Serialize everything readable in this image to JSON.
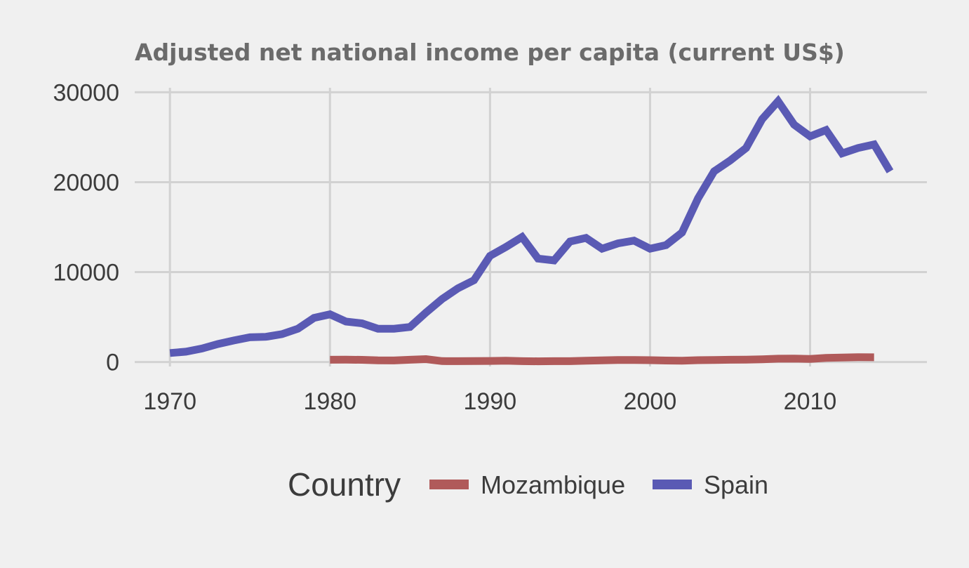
{
  "chart_data": {
    "type": "line",
    "title": "Adjusted net national income per capita (current US$)",
    "xlabel": "",
    "ylabel": "",
    "xlim": [
      1967.8,
      2017.3
    ],
    "ylim": [
      -500,
      30500
    ],
    "x_ticks": [
      1970,
      1980,
      1990,
      2000,
      2010
    ],
    "y_ticks": [
      0,
      10000,
      20000,
      30000
    ],
    "x_tick_labels": [
      "1970",
      "1980",
      "1990",
      "2000",
      "2010"
    ],
    "y_tick_labels": [
      "0",
      "10000",
      "20000",
      "30000"
    ],
    "grid": true,
    "legend": {
      "title": "Country",
      "position": "bottom"
    },
    "series": [
      {
        "name": "Mozambique",
        "color": "#b05a5a",
        "x": [
          1980,
          1981,
          1982,
          1983,
          1984,
          1985,
          1986,
          1987,
          1988,
          1989,
          1990,
          1991,
          1992,
          1993,
          1994,
          1995,
          1996,
          1997,
          1998,
          1999,
          2000,
          2001,
          2002,
          2003,
          2004,
          2005,
          2006,
          2007,
          2008,
          2009,
          2010,
          2011,
          2012,
          2013,
          2014
        ],
        "values": [
          250,
          260,
          240,
          180,
          170,
          250,
          320,
          100,
          90,
          110,
          120,
          150,
          90,
          80,
          90,
          90,
          150,
          190,
          220,
          230,
          200,
          160,
          150,
          200,
          230,
          250,
          260,
          300,
          370,
          380,
          340,
          450,
          500,
          530,
          520
        ]
      },
      {
        "name": "Spain",
        "color": "#5a5ab4",
        "x": [
          1970,
          1971,
          1972,
          1973,
          1974,
          1975,
          1976,
          1977,
          1978,
          1979,
          1980,
          1981,
          1982,
          1983,
          1984,
          1985,
          1986,
          1987,
          1988,
          1989,
          1990,
          1991,
          1992,
          1993,
          1994,
          1995,
          1996,
          1997,
          1998,
          1999,
          2000,
          2001,
          2002,
          2003,
          2004,
          2005,
          2006,
          2007,
          2008,
          2009,
          2010,
          2011,
          2012,
          2013,
          2014,
          2015
        ],
        "values": [
          1000,
          1150,
          1500,
          2000,
          2400,
          2750,
          2800,
          3100,
          3700,
          4900,
          5300,
          4500,
          4300,
          3700,
          3700,
          3900,
          5500,
          7000,
          8200,
          9100,
          11800,
          12800,
          13900,
          11500,
          11300,
          13400,
          13800,
          12600,
          13200,
          13500,
          12600,
          13000,
          14400,
          18200,
          21200,
          22400,
          23800,
          27000,
          29000,
          26400,
          25100,
          25800,
          23200,
          23800,
          24200,
          21200
        ]
      }
    ]
  }
}
